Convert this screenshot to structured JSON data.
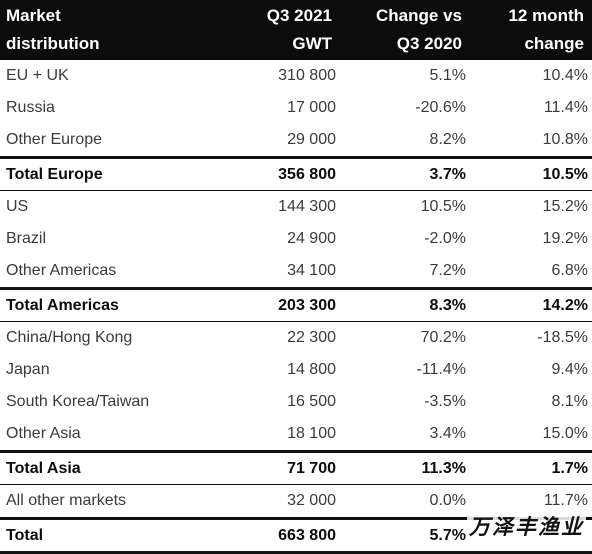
{
  "header": {
    "col1": [
      "Market",
      "distribution"
    ],
    "col2": [
      "Q3 2021",
      "GWT"
    ],
    "col3": [
      "Change vs",
      "Q3 2020"
    ],
    "col4": [
      "12 month",
      "change"
    ]
  },
  "rows": [
    {
      "name": "EU + UK",
      "gwt": "310 800",
      "change": "5.1%",
      "twelve": "10.4%",
      "total": false
    },
    {
      "name": "Russia",
      "gwt": "17 000",
      "change": "-20.6%",
      "twelve": "11.4%",
      "total": false
    },
    {
      "name": "Other Europe",
      "gwt": "29 000",
      "change": "8.2%",
      "twelve": "10.8%",
      "total": false
    },
    {
      "name": "Total Europe",
      "gwt": "356 800",
      "change": "3.7%",
      "twelve": "10.5%",
      "total": true
    },
    {
      "name": "US",
      "gwt": "144 300",
      "change": "10.5%",
      "twelve": "15.2%",
      "total": false
    },
    {
      "name": "Brazil",
      "gwt": "24 900",
      "change": "-2.0%",
      "twelve": "19.2%",
      "total": false
    },
    {
      "name": "Other Americas",
      "gwt": "34 100",
      "change": "7.2%",
      "twelve": "6.8%",
      "total": false
    },
    {
      "name": "Total Americas",
      "gwt": "203 300",
      "change": "8.3%",
      "twelve": "14.2%",
      "total": true
    },
    {
      "name": "China/Hong Kong",
      "gwt": "22 300",
      "change": "70.2%",
      "twelve": "-18.5%",
      "total": false
    },
    {
      "name": "Japan",
      "gwt": "14 800",
      "change": "-11.4%",
      "twelve": "9.4%",
      "total": false
    },
    {
      "name": "South Korea/Taiwan",
      "gwt": "16 500",
      "change": "-3.5%",
      "twelve": "8.1%",
      "total": false
    },
    {
      "name": "Other Asia",
      "gwt": "18 100",
      "change": "3.4%",
      "twelve": "15.0%",
      "total": false
    },
    {
      "name": "Total Asia",
      "gwt": "71 700",
      "change": "11.3%",
      "twelve": "1.7%",
      "total": true
    },
    {
      "name": "All other markets",
      "gwt": "32 000",
      "change": "0.0%",
      "twelve": "11.7%",
      "total": false
    },
    {
      "name": "Total",
      "gwt": "663 800",
      "change": "5.7%",
      "twelve": "",
      "total": true
    }
  ],
  "watermark": "万泽丰渔业"
}
